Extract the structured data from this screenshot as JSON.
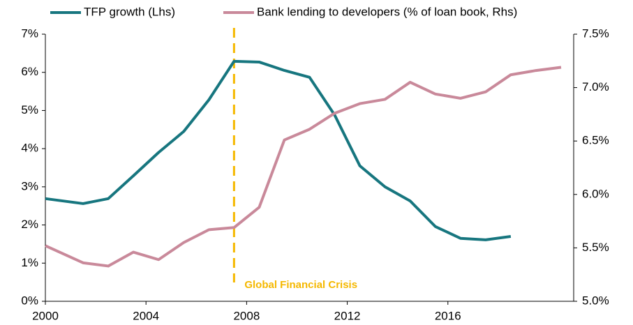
{
  "chart_data": {
    "type": "line",
    "series": [
      {
        "name": "TFP growth (Lhs)",
        "color": "#17767f",
        "x": [
          2000,
          2001.5,
          2002.5,
          2003.5,
          2004.5,
          2005.5,
          2006.5,
          2007.5,
          2008.5,
          2009.5,
          2010.5,
          2011.5,
          2012.5,
          2013.5,
          2014.5,
          2015.5,
          2016.5,
          2017.5,
          2018.5
        ],
        "values": [
          2.69,
          2.56,
          2.69,
          3.29,
          3.9,
          4.45,
          5.28,
          6.29,
          6.27,
          6.05,
          5.87,
          4.88,
          3.55,
          3.0,
          2.63,
          1.96,
          1.65,
          1.61,
          1.7
        ]
      },
      {
        "name": "Bank lending to developers (% of loan book, Rhs)",
        "color": "#c9899a",
        "axis": "y2",
        "x": [
          2000,
          2001.5,
          2002.5,
          2003.5,
          2004.5,
          2005.5,
          2006.5,
          2007.5,
          2008.5,
          2009.5,
          2010.5,
          2011.5,
          2012.5,
          2013.5,
          2014.5,
          2015.5,
          2016.5,
          2017.5,
          2018.5,
          2019.5,
          2020.5
        ],
        "values": [
          5.52,
          5.36,
          5.33,
          5.46,
          5.39,
          5.55,
          5.67,
          5.69,
          5.88,
          6.51,
          6.61,
          6.76,
          6.85,
          6.89,
          7.05,
          6.94,
          6.9,
          6.96,
          7.12,
          7.16,
          7.19
        ]
      }
    ],
    "xlim": [
      2000,
      2021
    ],
    "xticks": [
      2000,
      2004,
      2008,
      2012,
      2016
    ],
    "ylim": [
      0,
      7
    ],
    "yticks": [
      {
        "value": 0,
        "label": "0%"
      },
      {
        "value": 1,
        "label": "1%"
      },
      {
        "value": 2,
        "label": "2%"
      },
      {
        "value": 3,
        "label": "3%"
      },
      {
        "value": 4,
        "label": "4%"
      },
      {
        "value": 5,
        "label": "5%"
      },
      {
        "value": 6,
        "label": "6%"
      },
      {
        "value": 7,
        "label": "7%"
      }
    ],
    "y2lim": [
      5.0,
      7.5
    ],
    "y2ticks": [
      {
        "value": 5.0,
        "label": "5.0%"
      },
      {
        "value": 5.5,
        "label": "5.5%"
      },
      {
        "value": 6.0,
        "label": "6.0%"
      },
      {
        "value": 6.5,
        "label": "6.5%"
      },
      {
        "value": 7.0,
        "label": "7.0%"
      },
      {
        "value": 7.5,
        "label": "7.5%"
      }
    ],
    "annotations": [
      {
        "text": "Global Financial Crisis",
        "x": 2007.5,
        "color": "#f5b800"
      }
    ],
    "legend": "top"
  }
}
